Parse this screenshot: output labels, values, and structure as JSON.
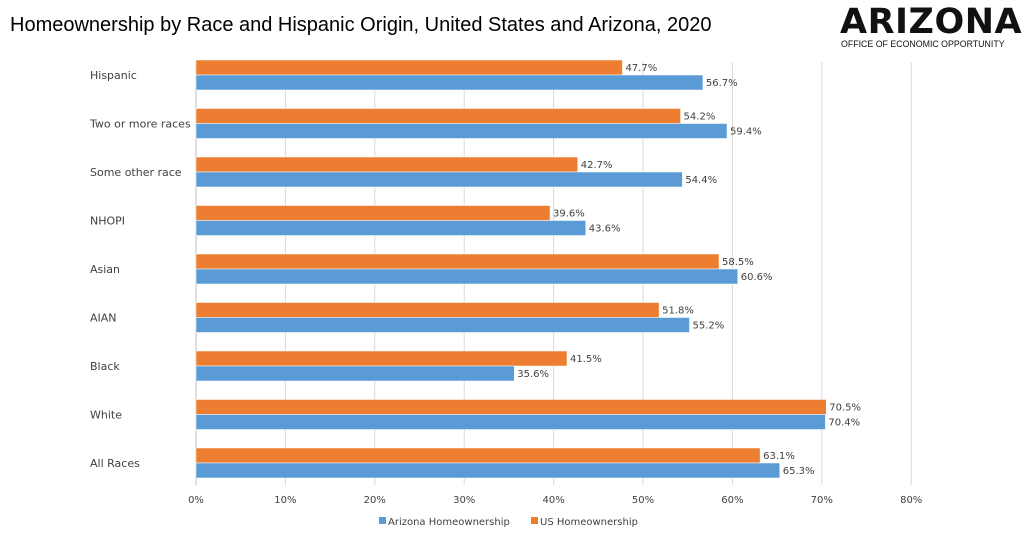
{
  "header": {
    "title": "Homeownership by Race and Hispanic Origin, United States and Arizona, 2020"
  },
  "logo": {
    "word": "ARIZONA",
    "subtitle": "OFFICE OF ECONOMIC OPPORTUNITY"
  },
  "colors": {
    "arizona": "#5B9BD5",
    "us": "#ED7D31",
    "grid": "#d9d9d9"
  },
  "chart_data": {
    "type": "bar",
    "orientation": "horizontal",
    "title": "Homeownership by Race and Hispanic Origin, United States and Arizona, 2020",
    "categories": [
      "All Races",
      "White",
      "Black",
      "AIAN",
      "Asian",
      "NHOPI",
      "Some other race",
      "Two or more races",
      "Hispanic"
    ],
    "series": [
      {
        "name": "Arizona Homeownership",
        "values": [
          65.3,
          70.4,
          35.6,
          55.2,
          60.6,
          43.6,
          54.4,
          59.4,
          56.7
        ]
      },
      {
        "name": "US Homeownership",
        "values": [
          63.1,
          70.5,
          41.5,
          51.8,
          58.5,
          39.6,
          42.7,
          54.2,
          47.7
        ]
      }
    ],
    "xlim": [
      0,
      80
    ],
    "ticks": [
      "0%",
      "10%",
      "20%",
      "30%",
      "40%",
      "50%",
      "60%",
      "70%",
      "80%"
    ],
    "grid": "vertical",
    "legend_position": "bottom"
  }
}
